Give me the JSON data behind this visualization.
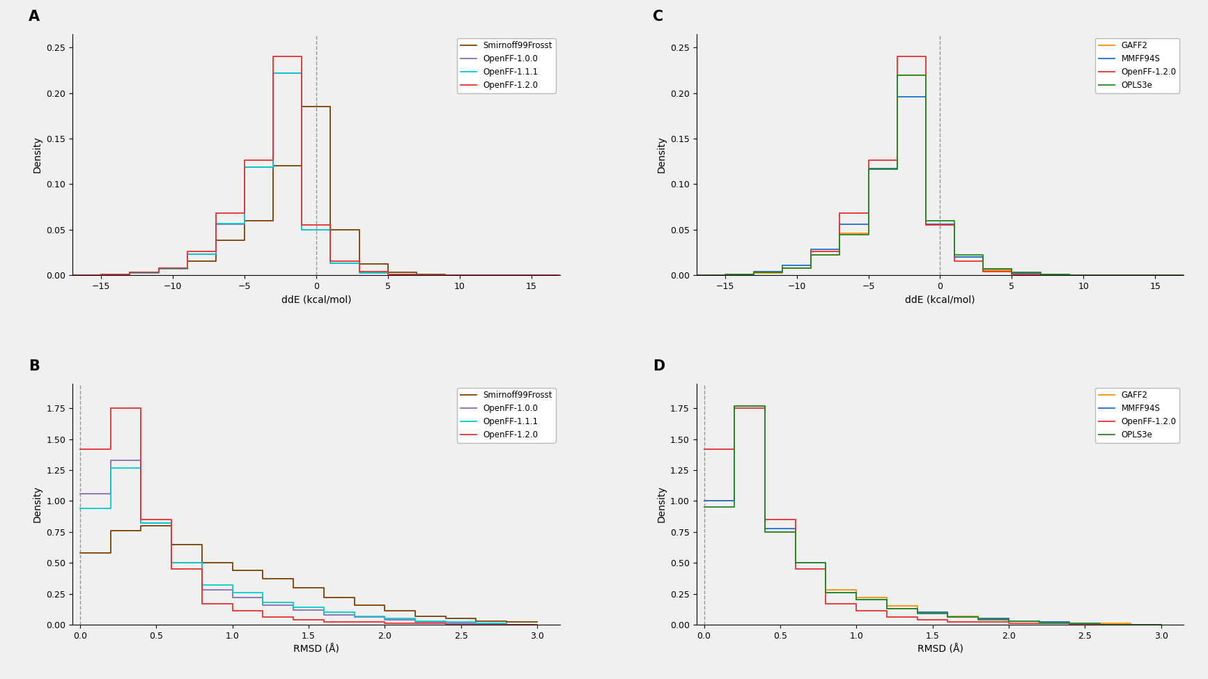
{
  "background_color": "#f0f0f0",
  "ddE_xlim": [
    -17,
    17
  ],
  "ddE_ylim": [
    0,
    0.265
  ],
  "ddE_xticks": [
    -15,
    -10,
    -5,
    0,
    5,
    10,
    15
  ],
  "ddE_yticks": [
    0.0,
    0.05,
    0.1,
    0.15,
    0.2,
    0.25
  ],
  "ddE_xlabel": "ddE (kcal/mol)",
  "ddE_ylabel": "Density",
  "rmsd_xlim": [
    -0.05,
    3.15
  ],
  "rmsd_ylim": [
    0,
    1.95
  ],
  "rmsd_xticks": [
    0.0,
    0.5,
    1.0,
    1.5,
    2.0,
    2.5,
    3.0
  ],
  "rmsd_yticks": [
    0.0,
    0.25,
    0.5,
    0.75,
    1.0,
    1.25,
    1.5,
    1.75
  ],
  "rmsd_xlabel": "RMSD (Å)",
  "rmsd_ylabel": "Density",
  "panelA_colors": [
    "#7B3F00",
    "#8B6DB5",
    "#00CED1",
    "#E63030"
  ],
  "panelA_labels": [
    "Smirnoff99Frosst",
    "OpenFF-1.0.0",
    "OpenFF-1.1.1",
    "OpenFF-1.2.0"
  ],
  "panelA_ddE_bins": [
    -17,
    -15,
    -13,
    -11,
    -9,
    -7,
    -5,
    -3,
    -1,
    1,
    3,
    5,
    7,
    9,
    11,
    13,
    15,
    17
  ],
  "panelA_ddE_data": [
    [
      0.0,
      0.001,
      0.003,
      0.008,
      0.015,
      0.038,
      0.06,
      0.12,
      0.185,
      0.05,
      0.012,
      0.003,
      0.001,
      0.0,
      0.0,
      0.0,
      0.0
    ],
    [
      0.0,
      0.001,
      0.002,
      0.007,
      0.023,
      0.056,
      0.119,
      0.222,
      0.05,
      0.013,
      0.003,
      0.001,
      0.0,
      0.0,
      0.0,
      0.0,
      0.0
    ],
    [
      0.0,
      0.001,
      0.002,
      0.007,
      0.023,
      0.057,
      0.119,
      0.222,
      0.05,
      0.013,
      0.002,
      0.001,
      0.0,
      0.0,
      0.0,
      0.0,
      0.0
    ],
    [
      0.0,
      0.001,
      0.003,
      0.008,
      0.026,
      0.068,
      0.126,
      0.24,
      0.055,
      0.015,
      0.004,
      0.001,
      0.0,
      0.0,
      0.0,
      0.0,
      0.0
    ]
  ],
  "panelC_colors": [
    "#FF8C00",
    "#1E6FCC",
    "#E63030",
    "#228B22"
  ],
  "panelC_labels": [
    "GAFF2",
    "MMFF94S",
    "OpenFF-1.2.0",
    "OPLS3e"
  ],
  "panelC_ddE_data": [
    [
      0.0,
      0.001,
      0.002,
      0.008,
      0.022,
      0.046,
      0.117,
      0.22,
      0.056,
      0.02,
      0.005,
      0.002,
      0.001,
      0.0,
      0.0,
      0.0,
      0.0
    ],
    [
      0.0,
      0.001,
      0.004,
      0.011,
      0.028,
      0.056,
      0.116,
      0.196,
      0.056,
      0.02,
      0.007,
      0.002,
      0.001,
      0.0,
      0.0,
      0.0,
      0.0
    ],
    [
      0.0,
      0.001,
      0.003,
      0.008,
      0.026,
      0.068,
      0.126,
      0.24,
      0.055,
      0.015,
      0.004,
      0.001,
      0.0,
      0.0,
      0.0,
      0.0,
      0.0
    ],
    [
      0.0,
      0.001,
      0.003,
      0.008,
      0.022,
      0.044,
      0.117,
      0.22,
      0.06,
      0.022,
      0.007,
      0.003,
      0.001,
      0.0,
      0.0,
      0.0,
      0.0
    ]
  ],
  "panelB_rmsd_bins": [
    0.0,
    0.2,
    0.4,
    0.6,
    0.8,
    1.0,
    1.2,
    1.4,
    1.6,
    1.8,
    2.0,
    2.2,
    2.4,
    2.6,
    2.8,
    3.0
  ],
  "panelB_rmsd_data": [
    [
      0.58,
      0.76,
      0.8,
      0.65,
      0.5,
      0.44,
      0.37,
      0.3,
      0.22,
      0.16,
      0.11,
      0.07,
      0.05,
      0.03,
      0.02
    ],
    [
      1.06,
      1.33,
      0.82,
      0.5,
      0.28,
      0.22,
      0.16,
      0.12,
      0.08,
      0.06,
      0.04,
      0.02,
      0.01,
      0.01,
      0.0
    ],
    [
      0.94,
      1.27,
      0.82,
      0.5,
      0.32,
      0.26,
      0.18,
      0.14,
      0.1,
      0.07,
      0.05,
      0.03,
      0.02,
      0.01,
      0.0
    ],
    [
      1.42,
      1.75,
      0.85,
      0.45,
      0.17,
      0.11,
      0.06,
      0.04,
      0.02,
      0.02,
      0.01,
      0.01,
      0.0,
      0.0,
      0.0
    ]
  ],
  "panelD_rmsd_data": [
    [
      1.0,
      1.77,
      0.75,
      0.5,
      0.28,
      0.22,
      0.15,
      0.1,
      0.07,
      0.05,
      0.03,
      0.02,
      0.01,
      0.01,
      0.0
    ],
    [
      1.0,
      1.77,
      0.78,
      0.5,
      0.26,
      0.2,
      0.13,
      0.1,
      0.06,
      0.05,
      0.03,
      0.02,
      0.01,
      0.0,
      0.0
    ],
    [
      1.42,
      1.75,
      0.85,
      0.45,
      0.17,
      0.11,
      0.06,
      0.04,
      0.02,
      0.02,
      0.01,
      0.01,
      0.0,
      0.0,
      0.0
    ],
    [
      0.95,
      1.77,
      0.75,
      0.5,
      0.26,
      0.2,
      0.13,
      0.09,
      0.06,
      0.04,
      0.03,
      0.01,
      0.01,
      0.0,
      0.0
    ]
  ],
  "panelD_colors": [
    "#FF8C00",
    "#1E6FCC",
    "#E63030",
    "#228B22"
  ],
  "panelD_labels": [
    "GAFF2",
    "MMFF94S",
    "OpenFF-1.2.0",
    "OPLS3e"
  ]
}
